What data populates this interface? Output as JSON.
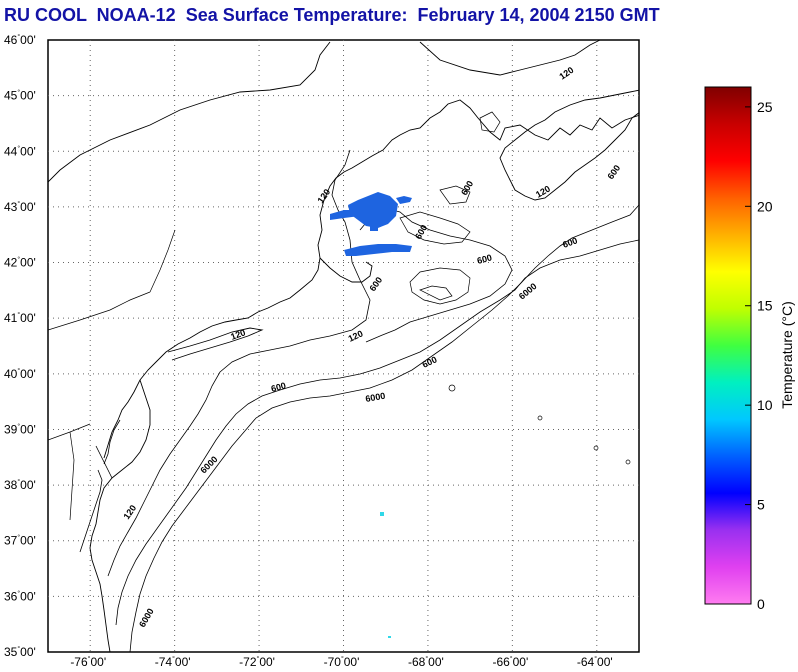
{
  "header": {
    "title": "RU COOL  NOAA-12  Sea Surface Temperature:  February 14, 2004 2150 GMT"
  },
  "map": {
    "latitude_labels": [
      {
        "deg": "46",
        "min": "00'"
      },
      {
        "deg": "45",
        "min": "00'"
      },
      {
        "deg": "44",
        "min": "00'"
      },
      {
        "deg": "43",
        "min": "00'"
      },
      {
        "deg": "42",
        "min": "00'"
      },
      {
        "deg": "41",
        "min": "00'"
      },
      {
        "deg": "40",
        "min": "00'"
      },
      {
        "deg": "39",
        "min": "00'"
      },
      {
        "deg": "38",
        "min": "00'"
      },
      {
        "deg": "37",
        "min": "00'"
      },
      {
        "deg": "36",
        "min": "00'"
      },
      {
        "deg": "35",
        "min": "00'"
      }
    ],
    "longitude_labels": [
      {
        "deg": "-76",
        "min": "00'"
      },
      {
        "deg": "-74",
        "min": "00'"
      },
      {
        "deg": "-72",
        "min": "00'"
      },
      {
        "deg": "-70",
        "min": "00'"
      },
      {
        "deg": "-68",
        "min": "00'"
      },
      {
        "deg": "-66",
        "min": "00'"
      },
      {
        "deg": "-64",
        "min": "00'"
      }
    ],
    "contour_labels": [
      "120",
      "120",
      "120",
      "120",
      "120",
      "600",
      "600",
      "600",
      "600",
      "600",
      "600",
      "6000",
      "6000",
      "6000",
      "600",
      "120",
      "6000",
      "600"
    ],
    "colors": {
      "land_line": "#000000",
      "grid": "#555555",
      "sst_cold": "#1e64e0",
      "sst_cyan": "#30d8e8"
    }
  },
  "colorbar": {
    "label": "Temperature (°C)",
    "ticks": [
      "25",
      "20",
      "15",
      "10",
      "5",
      "0"
    ],
    "colors": [
      "#ff7cf0",
      "#e040f0",
      "#9a30f0",
      "#0000ff",
      "#0060ff",
      "#00c8ff",
      "#00f0c0",
      "#40ff40",
      "#c0ff00",
      "#ffff00",
      "#ffb000",
      "#ff6000",
      "#ff0000",
      "#c80000",
      "#800000"
    ]
  }
}
